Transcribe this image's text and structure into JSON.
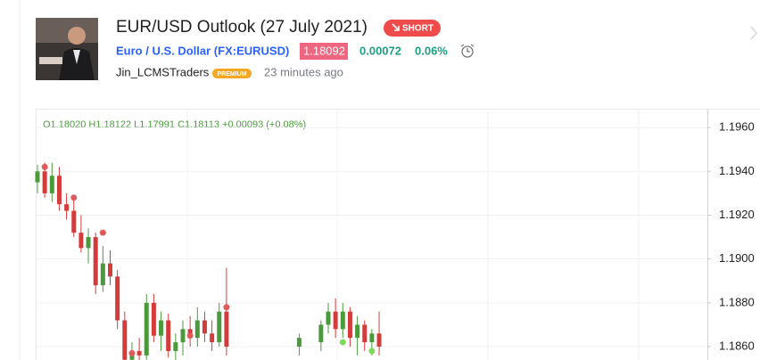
{
  "header": {
    "title": "EUR/USD Outlook (27 July 2021)",
    "badge": "SHORT",
    "symbol": "Euro / U.S. Dollar (FX:EURUSD)",
    "price": "1.18092",
    "change": "0.00072",
    "change_percent": "0.06%",
    "author": "Jin_LCMSTraders",
    "author_badge": "PREMIUM",
    "time_ago": "23 minutes ago"
  },
  "chart_data": {
    "type": "candlestick",
    "legend_text": "O1.18020 H1.18122 L1.17991 C1.18113 +0.00093 (+0.08%)",
    "open": [
      1.1935,
      1.194,
      1.193,
      1.1938,
      1.1925,
      1.1922,
      1.1912,
      1.1905,
      1.191,
      1.1888,
      1.1898,
      1.1892,
      1.1872,
      1.1854,
      1.1858,
      1.1856,
      1.188,
      1.1865,
      1.1872,
      1.1858,
      1.1862,
      1.1868,
      1.1864,
      1.1872,
      1.1866,
      1.1862,
      1.1876,
      null,
      null,
      null,
      null,
      null,
      null,
      null,
      null,
      null,
      1.186,
      null,
      null,
      1.1862,
      1.187,
      1.1876,
      1.1868,
      1.1876,
      1.1864,
      1.187,
      1.1862,
      1.1866
    ],
    "high": [
      1.1943,
      1.1944,
      1.1944,
      1.1942,
      1.193,
      1.1928,
      1.192,
      1.1914,
      1.1912,
      1.1906,
      1.1904,
      1.1895,
      1.1876,
      1.1862,
      1.1864,
      1.1884,
      1.1884,
      1.1876,
      1.1875,
      1.1866,
      1.1872,
      1.1874,
      1.1878,
      1.1876,
      1.1872,
      1.188,
      1.1896,
      null,
      null,
      null,
      null,
      null,
      null,
      null,
      null,
      null,
      1.1866,
      null,
      null,
      1.1872,
      1.188,
      1.1882,
      1.188,
      1.1878,
      1.1874,
      1.1872,
      1.1868,
      1.1876
    ],
    "low": [
      1.193,
      1.1928,
      1.1926,
      1.1922,
      1.1918,
      1.191,
      1.1903,
      1.1898,
      1.1884,
      1.1885,
      1.1888,
      1.1868,
      1.1852,
      1.185,
      1.1852,
      1.1854,
      1.1862,
      1.1858,
      1.1855,
      1.1852,
      1.1856,
      1.186,
      1.186,
      1.1862,
      1.1858,
      1.186,
      1.1856,
      null,
      null,
      null,
      null,
      null,
      null,
      null,
      null,
      null,
      1.1856,
      null,
      null,
      1.1858,
      1.1866,
      1.1864,
      1.1864,
      1.186,
      1.1856,
      1.1858,
      1.1856,
      1.1856
    ],
    "close": [
      1.194,
      1.193,
      1.1938,
      1.1925,
      1.1922,
      1.1912,
      1.1905,
      1.191,
      1.1888,
      1.1898,
      1.1892,
      1.1872,
      1.1854,
      1.1858,
      1.1856,
      1.188,
      1.1865,
      1.1872,
      1.1858,
      1.1862,
      1.1868,
      1.1864,
      1.1872,
      1.1866,
      1.1862,
      1.1876,
      1.186,
      null,
      null,
      null,
      null,
      null,
      null,
      null,
      null,
      null,
      1.1864,
      null,
      null,
      1.187,
      1.1876,
      1.1868,
      1.1876,
      1.1864,
      1.187,
      1.1862,
      1.1866,
      1.186
    ],
    "up_color": "#4a9a3c",
    "down_color": "#d43c3c",
    "markers": [
      {
        "x": 1,
        "price": 1.1942,
        "color": "#e05a5a"
      },
      {
        "x": 5,
        "price": 1.1928,
        "color": "#e05a5a"
      },
      {
        "x": 9,
        "price": 1.1912,
        "color": "#e05a5a"
      },
      {
        "x": 13,
        "price": 1.1857,
        "color": "#e05a5a"
      },
      {
        "x": 21,
        "price": 1.1865,
        "color": "#e05a5a"
      },
      {
        "x": 26,
        "price": 1.1878,
        "color": "#e05a5a"
      },
      {
        "x": 42,
        "price": 1.1862,
        "color": "#7ed957"
      },
      {
        "x": 46,
        "price": 1.1858,
        "color": "#7ed957"
      }
    ],
    "ylim": [
      1.18539,
      1.19686
    ],
    "yticks": [
      {
        "value": 1.196,
        "label": "1.1960"
      },
      {
        "value": 1.194,
        "label": "1.1940"
      },
      {
        "value": 1.192,
        "label": "1.1920"
      },
      {
        "value": 1.19,
        "label": "1.1900"
      },
      {
        "value": 1.188,
        "label": "1.1880"
      },
      {
        "value": 1.186,
        "label": "1.1860"
      }
    ],
    "grid": true
  }
}
